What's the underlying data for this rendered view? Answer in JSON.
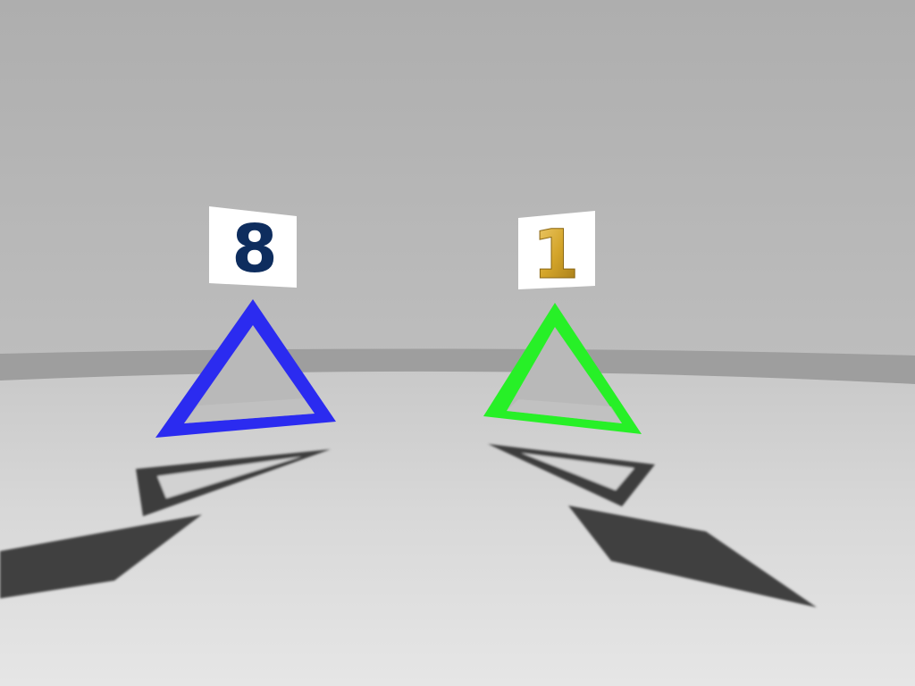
{
  "scene": {
    "type": "3d-room",
    "wall_color": "#b3b3b3",
    "floor_color": "#dcdcdc",
    "shadow_color": "#404040"
  },
  "objects": [
    {
      "id": "left",
      "shape": "triangle-outline",
      "color": "#2b2bf0",
      "sign_number": "8",
      "sign_number_color": "#0e2d5e"
    },
    {
      "id": "right",
      "shape": "triangle-outline",
      "color": "#27f027",
      "sign_number": "1",
      "sign_number_color": "#d4a52a"
    }
  ]
}
